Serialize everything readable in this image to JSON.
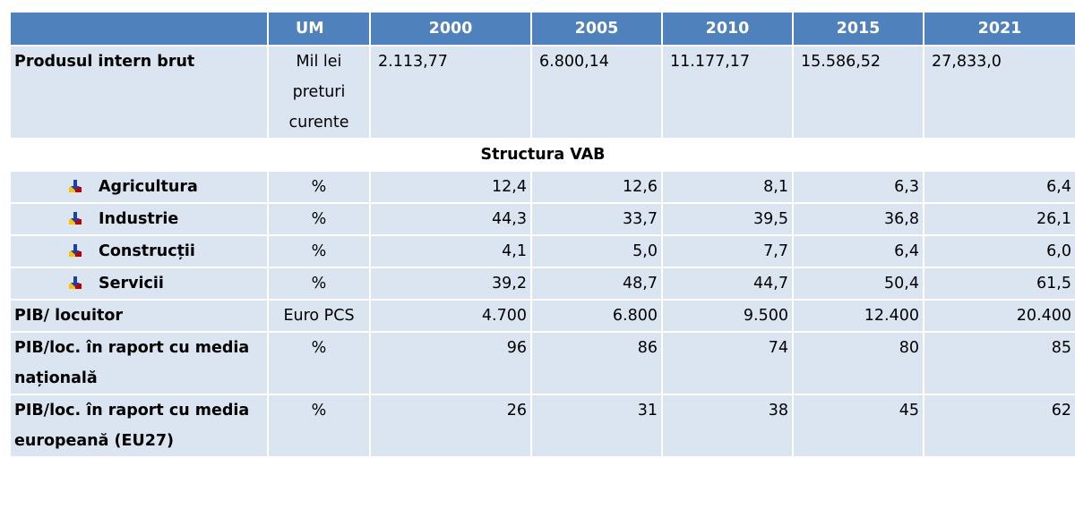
{
  "table": {
    "header": {
      "unit": "UM",
      "years": [
        "2000",
        "2005",
        "2010",
        "2015",
        "2021"
      ]
    },
    "rows_before": [
      {
        "label": "Produsul intern brut",
        "unit": "Mil lei preturi curente",
        "values": [
          "2.113,77",
          "6.800,14",
          "11.177,17",
          "15.586,52",
          "27,833,0"
        ]
      }
    ],
    "section": "Structura VAB",
    "subrows": [
      {
        "label": "Agricultura",
        "unit": "%",
        "values": [
          "12,4",
          "12,6",
          "8,1",
          "6,3",
          "6,4"
        ]
      },
      {
        "label": "Industrie",
        "unit": "%",
        "values": [
          "44,3",
          "33,7",
          "39,5",
          "36,8",
          "26,1"
        ]
      },
      {
        "label": "Construcții",
        "unit": "%",
        "values": [
          "4,1",
          "5,0",
          "7,7",
          "6,4",
          "6,0"
        ]
      },
      {
        "label": "Servicii",
        "unit": "%",
        "values": [
          "39,2",
          "48,7",
          "44,7",
          "50,4",
          "61,5"
        ]
      }
    ],
    "rows_after": [
      {
        "label": "PIB/ locuitor",
        "unit": "Euro PCS",
        "values": [
          "4.700",
          "6.800",
          "9.500",
          "12.400",
          "20.400"
        ]
      },
      {
        "label": "PIB/loc. în raport cu media națională",
        "unit": "%",
        "values": [
          "96",
          "86",
          "74",
          "80",
          "85"
        ]
      },
      {
        "label": "PIB/loc. în raport cu media europeană (EU27)",
        "unit": "%",
        "values": [
          "26",
          "31",
          "38",
          "45",
          "62"
        ]
      }
    ]
  }
}
